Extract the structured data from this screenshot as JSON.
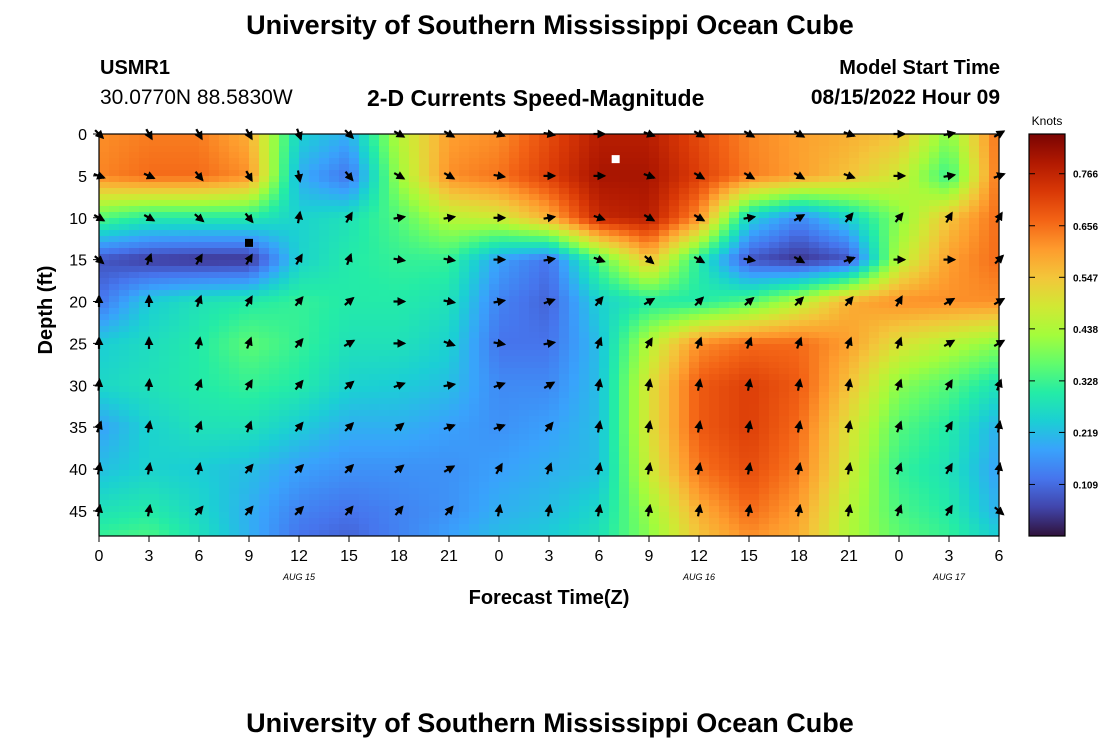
{
  "header": {
    "title": "University of Southern Mississippi Ocean Cube",
    "station_id": "USMR1",
    "station_coords": "30.0770N  88.5830W",
    "plot_title": "2-D Currents Speed-Magnitude",
    "model_start_label": "Model Start Time",
    "model_start_value": "08/15/2022 Hour 09"
  },
  "footer": {
    "title": "University of Southern Mississippi Ocean Cube"
  },
  "chart_data": {
    "type": "heatmap",
    "title": "2-D Currents Speed-Magnitude",
    "xlabel": "Forecast Time(Z)",
    "ylabel": "Depth (ft)",
    "x_tick_labels": [
      "0",
      "3",
      "6",
      "9",
      "12",
      "15",
      "18",
      "21",
      "0",
      "3",
      "6",
      "9",
      "12",
      "15",
      "18",
      "21",
      "0",
      "3",
      "6"
    ],
    "x_range_hours": [
      0,
      54
    ],
    "date_labels": [
      {
        "label": "AUG 15",
        "hour": 12
      },
      {
        "label": "AUG 16",
        "hour": 36
      },
      {
        "label": "AUG 17",
        "hour": 51
      }
    ],
    "y_ticks": [
      0,
      5,
      10,
      15,
      20,
      25,
      30,
      35,
      40,
      45
    ],
    "y_range_ft": [
      0,
      48
    ],
    "colorbar": {
      "unit_label": "Knots",
      "ticks": [
        "0.766",
        "0.656",
        "0.547",
        "0.438",
        "0.328",
        "0.219",
        "0.109"
      ],
      "tick_values": [
        0.766,
        0.656,
        0.547,
        0.438,
        0.328,
        0.219,
        0.109
      ],
      "range": [
        0.0,
        0.85
      ],
      "colors": [
        "#30123b",
        "#4145ab",
        "#4675ed",
        "#39a2fc",
        "#1bcfd4",
        "#24eca6",
        "#61fc6c",
        "#a4fc3b",
        "#d1e834",
        "#f3c63a",
        "#fe9b2d",
        "#f36315",
        "#d93806",
        "#b11901",
        "#7a0403"
      ]
    },
    "speed_field_knots": {
      "hours": [
        0,
        3,
        6,
        9,
        12,
        15,
        18,
        21,
        24,
        27,
        30,
        33,
        36,
        39,
        42,
        45,
        48,
        51,
        54
      ],
      "depths_ft": [
        0,
        5,
        10,
        15,
        20,
        25,
        30,
        35,
        40,
        45,
        48
      ],
      "values": [
        [
          0.62,
          0.64,
          0.64,
          0.58,
          0.25,
          0.2,
          0.45,
          0.6,
          0.62,
          0.7,
          0.78,
          0.78,
          0.7,
          0.63,
          0.6,
          0.58,
          0.55,
          0.4,
          0.66
        ],
        [
          0.63,
          0.66,
          0.66,
          0.62,
          0.2,
          0.12,
          0.42,
          0.62,
          0.65,
          0.72,
          0.8,
          0.8,
          0.72,
          0.64,
          0.6,
          0.55,
          0.48,
          0.32,
          0.66
        ],
        [
          0.35,
          0.3,
          0.3,
          0.3,
          0.25,
          0.28,
          0.35,
          0.45,
          0.48,
          0.58,
          0.76,
          0.78,
          0.62,
          0.25,
          0.15,
          0.25,
          0.4,
          0.55,
          0.66
        ],
        [
          0.08,
          0.05,
          0.04,
          0.04,
          0.25,
          0.3,
          0.32,
          0.32,
          0.18,
          0.12,
          0.35,
          0.55,
          0.3,
          0.08,
          0.04,
          0.08,
          0.45,
          0.6,
          0.66
        ],
        [
          0.12,
          0.24,
          0.28,
          0.3,
          0.32,
          0.3,
          0.3,
          0.28,
          0.14,
          0.1,
          0.25,
          0.3,
          0.3,
          0.35,
          0.45,
          0.58,
          0.62,
          0.62,
          0.62
        ],
        [
          0.24,
          0.27,
          0.3,
          0.36,
          0.32,
          0.28,
          0.28,
          0.25,
          0.12,
          0.12,
          0.22,
          0.45,
          0.62,
          0.66,
          0.66,
          0.6,
          0.5,
          0.45,
          0.4
        ],
        [
          0.26,
          0.28,
          0.3,
          0.32,
          0.3,
          0.25,
          0.24,
          0.22,
          0.15,
          0.15,
          0.22,
          0.5,
          0.68,
          0.72,
          0.68,
          0.55,
          0.4,
          0.35,
          0.28
        ],
        [
          0.18,
          0.25,
          0.28,
          0.28,
          0.24,
          0.2,
          0.2,
          0.18,
          0.16,
          0.18,
          0.22,
          0.5,
          0.68,
          0.72,
          0.66,
          0.5,
          0.35,
          0.3,
          0.2
        ],
        [
          0.22,
          0.25,
          0.24,
          0.22,
          0.18,
          0.16,
          0.16,
          0.16,
          0.18,
          0.2,
          0.22,
          0.48,
          0.65,
          0.7,
          0.64,
          0.48,
          0.32,
          0.28,
          0.18
        ],
        [
          0.28,
          0.3,
          0.26,
          0.2,
          0.14,
          0.12,
          0.14,
          0.16,
          0.2,
          0.22,
          0.26,
          0.42,
          0.58,
          0.66,
          0.6,
          0.45,
          0.34,
          0.3,
          0.2
        ],
        [
          0.32,
          0.34,
          0.28,
          0.2,
          0.12,
          0.1,
          0.14,
          0.18,
          0.22,
          0.24,
          0.28,
          0.4,
          0.55,
          0.62,
          0.58,
          0.44,
          0.36,
          0.32,
          0.24
        ]
      ]
    },
    "vector_grid": {
      "hours": [
        0,
        3,
        6,
        9,
        12,
        15,
        18,
        21,
        24,
        27,
        30,
        33,
        36,
        39,
        42,
        45,
        48,
        51,
        54
      ],
      "depths_ft": [
        0,
        5,
        10,
        15,
        20,
        25,
        30,
        35,
        40,
        45
      ],
      "direction_deg_cw_from_north": [
        [
          135,
          150,
          150,
          150,
          160,
          135,
          120,
          120,
          110,
          100,
          90,
          110,
          120,
          120,
          120,
          110,
          90,
          80,
          60
        ],
        [
          110,
          115,
          140,
          150,
          170,
          140,
          120,
          120,
          100,
          90,
          90,
          110,
          120,
          120,
          120,
          110,
          90,
          80,
          70
        ],
        [
          120,
          120,
          130,
          140,
          10,
          30,
          80,
          80,
          90,
          80,
          110,
          120,
          120,
          80,
          60,
          40,
          40,
          30,
          30
        ],
        [
          130,
          20,
          30,
          30,
          30,
          20,
          100,
          100,
          90,
          80,
          110,
          130,
          120,
          100,
          120,
          70,
          90,
          90,
          45
        ],
        [
          0,
          0,
          20,
          30,
          40,
          50,
          90,
          100,
          80,
          70,
          40,
          60,
          45,
          50,
          45,
          40,
          30,
          60,
          60
        ],
        [
          0,
          0,
          10,
          20,
          40,
          60,
          90,
          110,
          100,
          80,
          20,
          30,
          20,
          20,
          20,
          20,
          20,
          60,
          60
        ],
        [
          5,
          5,
          20,
          30,
          40,
          50,
          70,
          80,
          70,
          60,
          10,
          10,
          10,
          10,
          10,
          10,
          20,
          30,
          20
        ],
        [
          20,
          10,
          20,
          20,
          40,
          45,
          50,
          70,
          70,
          40,
          10,
          10,
          10,
          10,
          10,
          10,
          20,
          30,
          10
        ],
        [
          10,
          10,
          10,
          40,
          45,
          45,
          50,
          60,
          30,
          20,
          10,
          10,
          10,
          10,
          10,
          10,
          20,
          30,
          10
        ],
        [
          10,
          10,
          40,
          40,
          45,
          40,
          40,
          40,
          10,
          10,
          10,
          10,
          10,
          10,
          10,
          10,
          20,
          30,
          130
        ]
      ]
    },
    "markers": [
      {
        "hour": 9,
        "depth_ft": 13,
        "color": "#000000"
      },
      {
        "hour": 31,
        "depth_ft": 3,
        "color": "#ffffff"
      }
    ]
  }
}
